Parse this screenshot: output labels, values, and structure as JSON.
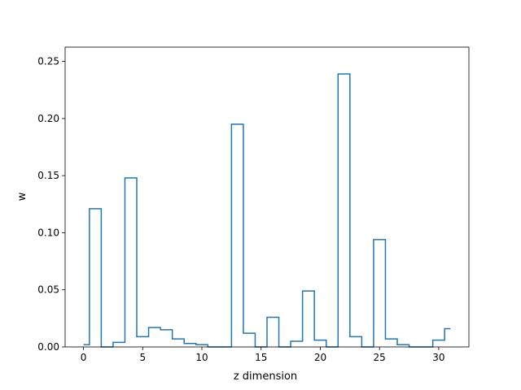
{
  "chart_data": {
    "type": "line",
    "drawstyle": "steps-mid",
    "xlabel": "z dimension",
    "ylabel": "w",
    "xlim": [
      -1.55,
      32.55
    ],
    "ylim": [
      0.0,
      0.2625
    ],
    "xticks": [
      0,
      5,
      10,
      15,
      20,
      25,
      30
    ],
    "yticks": [
      0.0,
      0.05,
      0.1,
      0.15,
      0.2,
      0.25
    ],
    "ytick_labels": [
      "0.00",
      "0.05",
      "0.10",
      "0.15",
      "0.20",
      "0.25"
    ],
    "grid": false,
    "series": [
      {
        "color": "#1f77b4",
        "x": [
          0,
          1,
          2,
          3,
          4,
          5,
          6,
          7,
          8,
          9,
          10,
          11,
          12,
          13,
          14,
          15,
          16,
          17,
          18,
          19,
          20,
          21,
          22,
          23,
          24,
          25,
          26,
          27,
          28,
          29,
          30,
          31
        ],
        "values": [
          0.002,
          0.121,
          0.0,
          0.004,
          0.148,
          0.009,
          0.017,
          0.015,
          0.007,
          0.003,
          0.002,
          0.0,
          0.0,
          0.195,
          0.012,
          0.0,
          0.026,
          0.0,
          0.005,
          0.049,
          0.006,
          0.0,
          0.239,
          0.009,
          0.0,
          0.094,
          0.007,
          0.002,
          0.0,
          0.0,
          0.006,
          0.016
        ]
      }
    ]
  }
}
